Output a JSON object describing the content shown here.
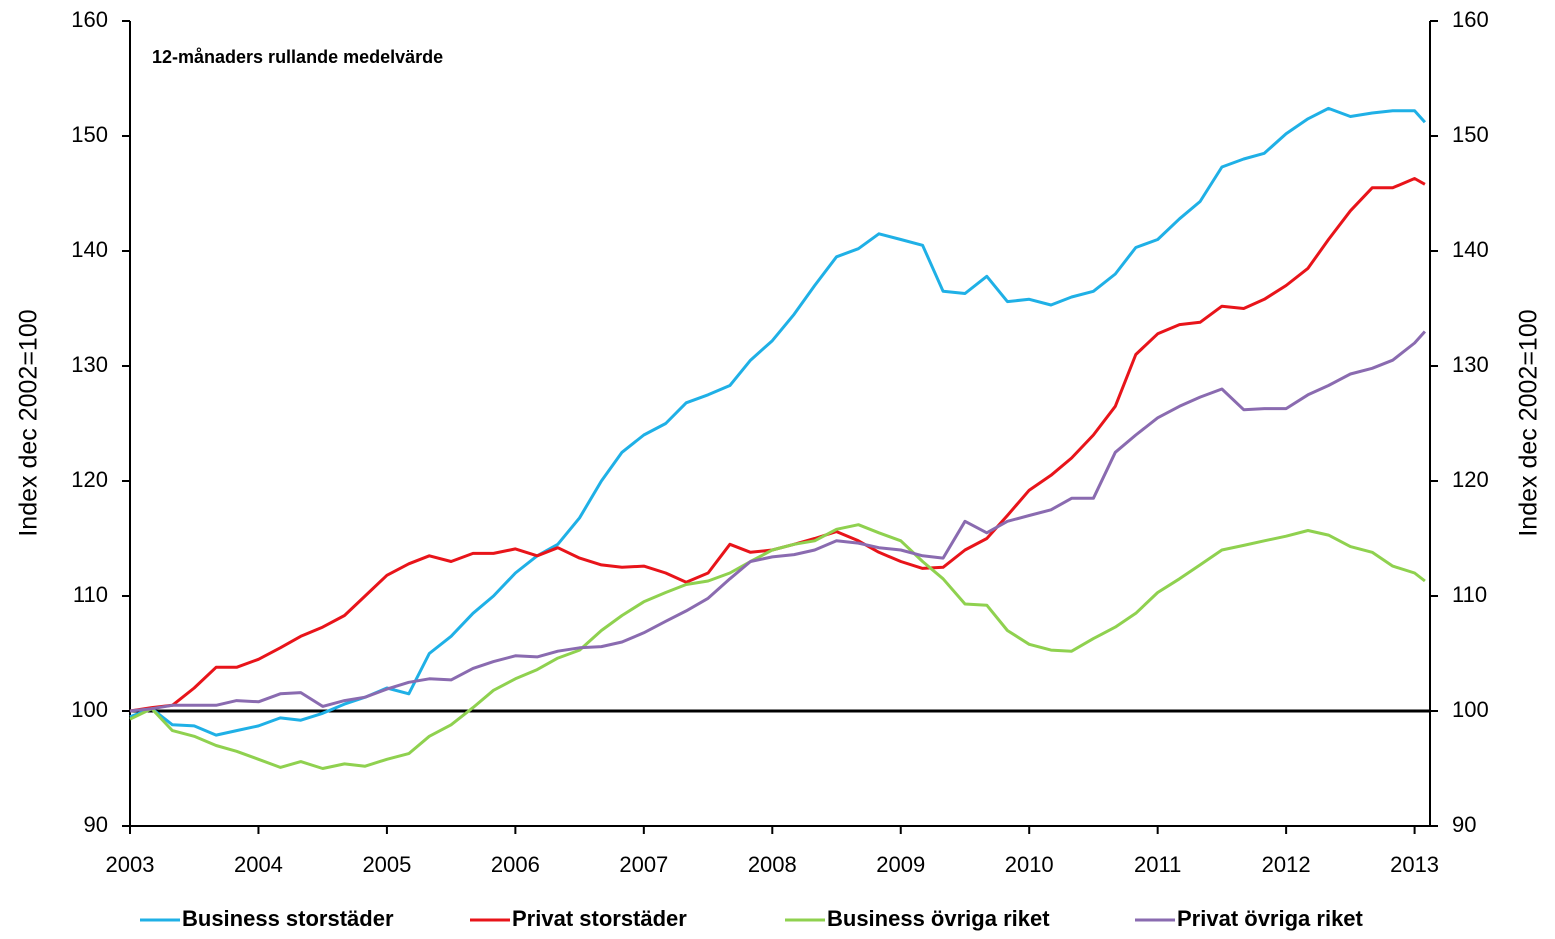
{
  "chart_data": {
    "type": "line",
    "annotation": "12-månaders rullande medelvärde",
    "ylabel": "Index dec 2002=100",
    "y2label": "Index dec 2002=100",
    "x": [
      2003,
      2003.17,
      2003.33,
      2003.5,
      2003.67,
      2003.83,
      2004,
      2004.17,
      2004.33,
      2004.5,
      2004.67,
      2004.83,
      2005,
      2005.17,
      2005.33,
      2005.5,
      2005.67,
      2005.83,
      2006,
      2006.17,
      2006.33,
      2006.5,
      2006.67,
      2006.83,
      2007,
      2007.17,
      2007.33,
      2007.5,
      2007.67,
      2007.83,
      2008,
      2008.17,
      2008.33,
      2008.5,
      2008.67,
      2008.83,
      2009,
      2009.17,
      2009.33,
      2009.5,
      2009.67,
      2009.83,
      2010,
      2010.17,
      2010.33,
      2010.5,
      2010.67,
      2010.83,
      2011,
      2011.17,
      2011.33,
      2011.5,
      2011.67,
      2011.83,
      2012,
      2012.17,
      2012.33,
      2012.5,
      2012.67,
      2012.83,
      2013,
      2013.08
    ],
    "series": [
      {
        "name": "Business storstäder",
        "color": "#1fb0e6",
        "values": [
          99.5,
          100.2,
          98.8,
          98.7,
          97.9,
          98.3,
          98.7,
          99.4,
          99.2,
          99.8,
          100.6,
          101.2,
          102,
          101.5,
          105,
          106.5,
          108.5,
          110,
          112,
          113.5,
          114.5,
          116.8,
          120,
          122.5,
          124,
          125,
          126.8,
          127.5,
          128.3,
          130.5,
          132.2,
          134.5,
          137,
          139.5,
          140.2,
          141.5,
          141,
          140.5,
          136.5,
          136.3,
          137.8,
          135.6,
          135.8,
          135.3,
          136,
          136.5,
          138,
          140.3,
          141,
          142.8,
          144.3,
          147.3,
          148,
          148.5,
          150.2,
          151.5,
          152.4,
          151.7,
          152,
          152.2,
          152.2,
          151.2
        ]
      },
      {
        "name": "Privat storstäder",
        "color": "#e8141a",
        "values": [
          100,
          100.3,
          100.5,
          102,
          103.8,
          103.8,
          104.5,
          105.5,
          106.5,
          107.3,
          108.3,
          110,
          111.8,
          112.8,
          113.5,
          113,
          113.7,
          113.7,
          114.1,
          113.5,
          114.2,
          113.3,
          112.7,
          112.5,
          112.6,
          112,
          111.2,
          112,
          114.5,
          113.8,
          114,
          114.5,
          115,
          115.6,
          114.8,
          113.8,
          113,
          112.4,
          112.5,
          114,
          115,
          117,
          119.2,
          120.5,
          122,
          124,
          126.5,
          131,
          132.8,
          133.6,
          133.8,
          135.2,
          135,
          135.8,
          137,
          138.5,
          141,
          143.5,
          145.5,
          145.5,
          146.3,
          145.8
        ]
      },
      {
        "name": "Business övriga riket",
        "color": "#8fd14f",
        "values": [
          99.3,
          100.2,
          98.3,
          97.8,
          97,
          96.5,
          95.8,
          95.1,
          95.6,
          95,
          95.4,
          95.2,
          95.8,
          96.3,
          97.8,
          98.8,
          100.3,
          101.8,
          102.8,
          103.6,
          104.6,
          105.3,
          107,
          108.3,
          109.5,
          110.3,
          111,
          111.3,
          112,
          113,
          114,
          114.5,
          114.8,
          115.8,
          116.2,
          115.5,
          114.8,
          113,
          111.5,
          109.3,
          109.2,
          107,
          105.8,
          105.3,
          105.2,
          106.3,
          107.3,
          108.5,
          110.3,
          111.5,
          112.7,
          114,
          114.4,
          114.8,
          115.2,
          115.7,
          115.3,
          114.3,
          113.8,
          112.6,
          112,
          111.3
        ]
      },
      {
        "name": "Privat övriga riket",
        "color": "#8a6bb0",
        "values": [
          100,
          100.2,
          100.5,
          100.5,
          100.5,
          100.9,
          100.8,
          101.5,
          101.6,
          100.4,
          100.9,
          101.2,
          101.9,
          102.5,
          102.8,
          102.7,
          103.7,
          104.3,
          104.8,
          104.7,
          105.2,
          105.5,
          105.6,
          106,
          106.8,
          107.8,
          108.7,
          109.8,
          111.5,
          113,
          113.4,
          113.6,
          114,
          114.8,
          114.6,
          114.2,
          114,
          113.5,
          113.3,
          116.5,
          115.5,
          116.5,
          117,
          117.5,
          118.5,
          118.5,
          122.5,
          124,
          125.5,
          126.5,
          127.3,
          128,
          126.2,
          126.3,
          126.3,
          127.5,
          128.3,
          129.3,
          129.8,
          130.5,
          132,
          133
        ]
      }
    ],
    "xlim": [
      2003,
      2013.12
    ],
    "xticks": [
      2003,
      2004,
      2005,
      2006,
      2007,
      2008,
      2009,
      2010,
      2011,
      2012,
      2013
    ],
    "ylim": [
      90,
      160
    ],
    "yticks": [
      90,
      100,
      110,
      120,
      130,
      140,
      150,
      160
    ],
    "y2lim": [
      90,
      160
    ],
    "y2ticks": [
      90,
      100,
      110,
      120,
      130,
      140,
      150,
      160
    ],
    "hline": 100,
    "legend": "bottom"
  }
}
